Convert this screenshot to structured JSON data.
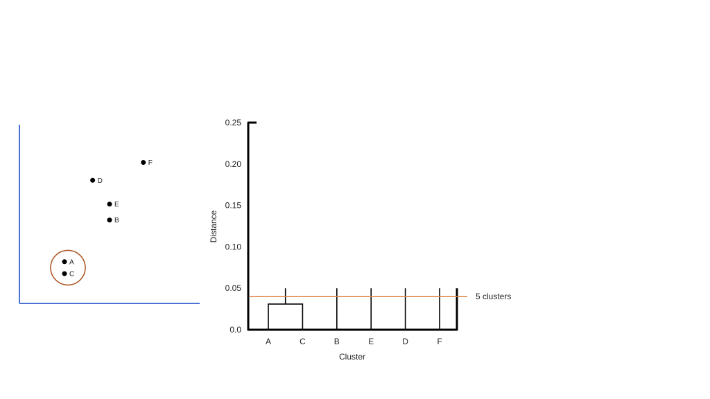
{
  "chart_data": [
    {
      "type": "scatter",
      "points": [
        {
          "label": "A",
          "x": 0.8,
          "y": 2.1
        },
        {
          "label": "C",
          "x": 0.8,
          "y": 1.5
        },
        {
          "label": "B",
          "x": 1.6,
          "y": 4.2
        },
        {
          "label": "E",
          "x": 1.6,
          "y": 5.0
        },
        {
          "label": "D",
          "x": 1.3,
          "y": 6.2
        },
        {
          "label": "F",
          "x": 2.2,
          "y": 7.1
        }
      ],
      "highlighted_group": [
        "A",
        "C"
      ],
      "xlim": [
        0,
        3.2
      ],
      "ylim": [
        0,
        9
      ],
      "colors": {
        "axes": "#4a73d6",
        "points": "#000000",
        "highlight": "#b05a2a"
      }
    },
    {
      "type": "dendrogram",
      "title": "",
      "xlabel": "Cluster",
      "ylabel": "Distance",
      "categories": [
        "A",
        "C",
        "B",
        "E",
        "D",
        "F"
      ],
      "yticks": [
        "0.0",
        "0.05",
        "0.10",
        "0.15",
        "0.20",
        "0.25"
      ],
      "ylim": [
        0,
        0.25
      ],
      "merges": [
        {
          "left": "A",
          "right": "C",
          "height": 0.031
        }
      ],
      "branch_top": 0.05,
      "cut": {
        "value": 0.04,
        "label": "5 clusters",
        "color": "#e0874c"
      }
    }
  ]
}
